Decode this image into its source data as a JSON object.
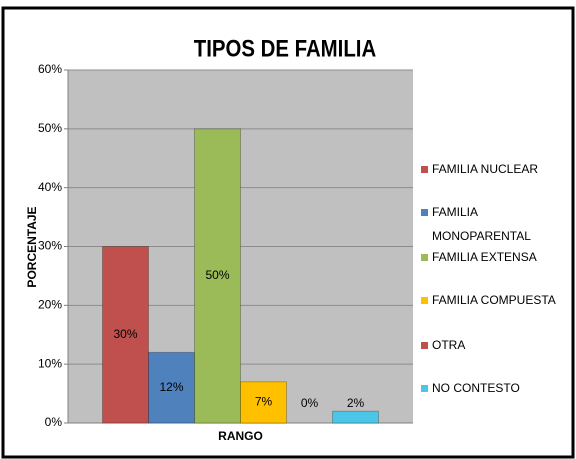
{
  "chart_data": {
    "type": "bar",
    "title": "TIPOS DE FAMILIA",
    "ylabel": "PORCENTAJE",
    "categories": [
      "RANGO"
    ],
    "series": [
      {
        "name": "FAMILIA NUCLEAR",
        "color": "#c0504d",
        "values": [
          30
        ],
        "value_labels": [
          "30%"
        ]
      },
      {
        "name": "FAMILIA MONOPARENTAL",
        "color": "#4f81bd",
        "values": [
          12
        ],
        "value_labels": [
          "12%"
        ]
      },
      {
        "name": "FAMILIA EXTENSA",
        "color": "#9bbb59",
        "values": [
          50
        ],
        "value_labels": [
          "50%"
        ]
      },
      {
        "name": "FAMILIA COMPUESTA",
        "color": "#ffc000",
        "values": [
          7
        ],
        "value_labels": [
          "7%"
        ]
      },
      {
        "name": "OTRA",
        "color": "#c0504d",
        "values": [
          0
        ],
        "value_labels": [
          "0%"
        ]
      },
      {
        "name": "NO CONTESTO",
        "color": "#4bc6e8",
        "values": [
          2
        ],
        "value_labels": [
          "2%"
        ]
      }
    ],
    "ylim": [
      0,
      60
    ],
    "yticks": [
      {
        "value": 0,
        "label": "0%"
      },
      {
        "value": 10,
        "label": "10%"
      },
      {
        "value": 20,
        "label": "20%"
      },
      {
        "value": 30,
        "label": "30%"
      },
      {
        "value": 40,
        "label": "40%"
      },
      {
        "value": 50,
        "label": "50%"
      },
      {
        "value": 60,
        "label": "60%"
      }
    ],
    "grid": true,
    "legend": "right"
  }
}
